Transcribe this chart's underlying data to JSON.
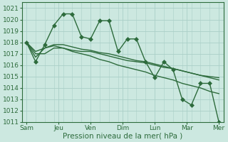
{
  "bg_color": "#cce8e0",
  "grid_color": "#aacfc8",
  "line_color": "#2d6b3c",
  "xlabel": "Pression niveau de la mer( hPa )",
  "ylim": [
    1011,
    1021.5
  ],
  "yticks": [
    1011,
    1012,
    1013,
    1014,
    1015,
    1016,
    1017,
    1018,
    1019,
    1020,
    1021
  ],
  "xtick_labels": [
    "Sam",
    "Jeu",
    "Ven",
    "Dim",
    "Lun",
    "Mar",
    "Mer"
  ],
  "series": [
    [
      1018.0,
      1016.3,
      1017.8,
      1019.5,
      1020.5,
      1020.5,
      1018.5,
      1018.3,
      1019.9,
      1019.9,
      1017.2,
      1018.3,
      1018.3,
      1016.3,
      1014.9,
      1016.3,
      1015.6,
      1013.0,
      1012.5,
      1014.4,
      1014.4,
      1011.0
    ],
    [
      1018.0,
      1016.7,
      1017.5,
      1017.7,
      1017.5,
      1017.3,
      1017.2,
      1017.2,
      1017.0,
      1016.8,
      1016.6,
      1016.4,
      1016.3,
      1016.2,
      1016.0,
      1015.8,
      1015.7,
      1015.5,
      1015.3,
      1015.1,
      1015.0,
      1014.9
    ],
    [
      1018.0,
      1017.2,
      1017.5,
      1017.8,
      1017.8,
      1017.6,
      1017.4,
      1017.3,
      1017.1,
      1017.0,
      1016.8,
      1016.6,
      1016.4,
      1016.3,
      1016.1,
      1015.9,
      1015.7,
      1015.5,
      1015.3,
      1015.1,
      1014.9,
      1014.7
    ],
    [
      1018.0,
      1017.0,
      1017.0,
      1017.5,
      1017.5,
      1017.2,
      1017.0,
      1016.8,
      1016.5,
      1016.3,
      1016.0,
      1015.8,
      1015.6,
      1015.4,
      1015.1,
      1014.9,
      1014.7,
      1014.4,
      1014.2,
      1014.0,
      1013.7,
      1013.5
    ]
  ],
  "marker_size": 3.0,
  "line_width": 1.0,
  "tick_fontsize": 6.5,
  "xlabel_fontsize": 7.5
}
